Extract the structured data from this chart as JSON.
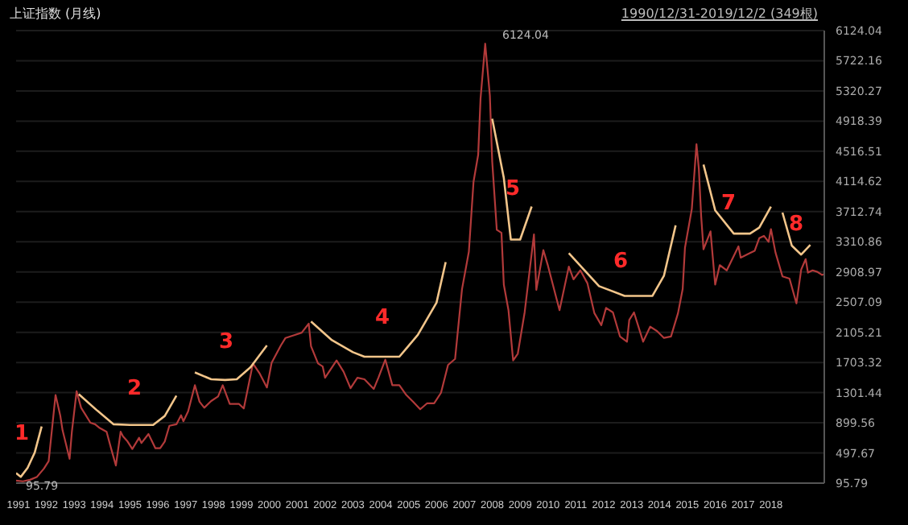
{
  "chart_data": {
    "type": "line",
    "title": "上证指数 (月线)",
    "subtitle": "1990/12/31-2019/12/2 (349根)",
    "xlim": [
      "1990-12",
      "2019-12"
    ],
    "xticks": [
      "1991",
      "1992",
      "1993",
      "1994",
      "1995",
      "1996",
      "1997",
      "1998",
      "1999",
      "2000",
      "2001",
      "2002",
      "2003",
      "2004",
      "2005",
      "2006",
      "2007",
      "2008",
      "2009",
      "2010",
      "2011",
      "2012",
      "2013",
      "2014",
      "2015",
      "2016",
      "2017",
      "2018"
    ],
    "ylim": [
      95.79,
      6124.04
    ],
    "yticks": [
      95.79,
      497.67,
      899.56,
      1301.44,
      1703.32,
      2105.21,
      2507.09,
      2908.97,
      3310.86,
      3712.74,
      4114.62,
      4516.51,
      4918.39,
      5320.27,
      5722.16,
      6124.04
    ],
    "grid": "y",
    "line_style": "solid",
    "marker": "none",
    "series": [
      {
        "color": "#b23a3a",
        "x": [
          "1990-12",
          "1991-03",
          "1991-06",
          "1991-09",
          "1991-12",
          "1992-02",
          "1992-05",
          "1992-07",
          "1992-08",
          "1992-11",
          "1992-12",
          "1993-02",
          "1993-04",
          "1993-06",
          "1993-08",
          "1993-10",
          "1993-12",
          "1994-03",
          "1994-05",
          "1994-07",
          "1994-09",
          "1994-10",
          "1994-12",
          "1995-02",
          "1995-05",
          "1995-06",
          "1995-09",
          "1995-12",
          "1996-02",
          "1996-04",
          "1996-06",
          "1996-09",
          "1996-11",
          "1996-12",
          "1997-02",
          "1997-05",
          "1997-07",
          "1997-09",
          "1997-12",
          "1998-03",
          "1998-05",
          "1998-08",
          "1998-12",
          "1999-02",
          "1999-06",
          "1999-09",
          "1999-12",
          "2000-02",
          "2000-06",
          "2000-08",
          "2000-12",
          "2001-03",
          "2001-06",
          "2001-07",
          "2001-10",
          "2001-12",
          "2002-01",
          "2002-06",
          "2002-09",
          "2002-12",
          "2003-03",
          "2003-06",
          "2003-10",
          "2003-12",
          "2004-03",
          "2004-06",
          "2004-09",
          "2004-12",
          "2005-03",
          "2005-06",
          "2005-09",
          "2005-12",
          "2006-03",
          "2006-06",
          "2006-09",
          "2006-12",
          "2007-03",
          "2007-05",
          "2007-07",
          "2007-08",
          "2007-10",
          "2007-12",
          "2008-01",
          "2008-03",
          "2008-05",
          "2008-06",
          "2008-08",
          "2008-10",
          "2008-12",
          "2009-03",
          "2009-07",
          "2009-08",
          "2009-11",
          "2010-01",
          "2010-06",
          "2010-10",
          "2010-12",
          "2011-03",
          "2011-06",
          "2011-09",
          "2011-12",
          "2012-02",
          "2012-05",
          "2012-08",
          "2012-11",
          "2012-12",
          "2013-02",
          "2013-06",
          "2013-09",
          "2013-12",
          "2014-03",
          "2014-06",
          "2014-09",
          "2014-11",
          "2014-12",
          "2015-03",
          "2015-05",
          "2015-06",
          "2015-07",
          "2015-08",
          "2015-11",
          "2016-01",
          "2016-03",
          "2016-06",
          "2016-11",
          "2016-12",
          "2017-04",
          "2017-06",
          "2017-08",
          "2017-10",
          "2017-12",
          "2018-01",
          "2018-03",
          "2018-06",
          "2018-09",
          "2018-12",
          "2019-02",
          "2019-04",
          "2019-05",
          "2019-07",
          "2019-09",
          "2019-11",
          "2019-12"
        ],
        "values": [
          130,
          120,
          140,
          180,
          290,
          390,
          1270,
          1000,
          800,
          420,
          780,
          1320,
          1100,
          1000,
          900,
          880,
          830,
          780,
          550,
          330,
          780,
          720,
          650,
          550,
          700,
          630,
          750,
          560,
          560,
          650,
          860,
          880,
          1000,
          920,
          1050,
          1400,
          1180,
          1100,
          1190,
          1250,
          1400,
          1150,
          1150,
          1090,
          1690,
          1550,
          1370,
          1700,
          1930,
          2030,
          2070,
          2100,
          2220,
          1920,
          1690,
          1650,
          1500,
          1730,
          1580,
          1360,
          1500,
          1480,
          1350,
          1500,
          1740,
          1400,
          1400,
          1270,
          1180,
          1080,
          1160,
          1160,
          1300,
          1670,
          1750,
          2680,
          3180,
          4110,
          4470,
          5220,
          5950,
          5260,
          4380,
          3470,
          3430,
          2740,
          2400,
          1730,
          1820,
          2370,
          3410,
          2670,
          3200,
          2990,
          2400,
          2980,
          2810,
          2930,
          2760,
          2360,
          2200,
          2430,
          2370,
          2050,
          1980,
          2270,
          2370,
          1980,
          2180,
          2120,
          2030,
          2050,
          2360,
          2680,
          3230,
          3750,
          4610,
          4280,
          3660,
          3210,
          3450,
          2740,
          3000,
          2930,
          3250,
          3100,
          3160,
          3190,
          3360,
          3390,
          3310,
          3480,
          3170,
          2850,
          2820,
          2490,
          2940,
          3080,
          2900,
          2930,
          2910,
          2870,
          2880
        ]
      },
      {
        "color": "#f2c58a",
        "x": [
          "1990-12",
          "1991-02",
          "1991-05",
          "1991-08",
          "1991-11"
        ],
        "values": [
          230,
          180,
          300,
          500,
          850
        ]
      },
      {
        "color": "#f2c58a",
        "x": [
          "1993-03",
          "1993-11",
          "1994-06",
          "1995-01",
          "1995-11",
          "1996-04",
          "1996-09"
        ],
        "values": [
          1280,
          1060,
          880,
          870,
          870,
          990,
          1260
        ]
      },
      {
        "color": "#f2c58a",
        "x": [
          "1997-05",
          "1997-12",
          "1998-06",
          "1998-11",
          "1999-05",
          "1999-12"
        ],
        "values": [
          1570,
          1480,
          1470,
          1480,
          1640,
          1930
        ]
      },
      {
        "color": "#f2c58a",
        "x": [
          "2001-07",
          "2002-04",
          "2003-01",
          "2003-06",
          "2004-09",
          "2005-05",
          "2006-01",
          "2006-05"
        ],
        "values": [
          2250,
          2000,
          1840,
          1780,
          1780,
          2070,
          2500,
          3040
        ]
      },
      {
        "color": "#f2c58a",
        "x": [
          "2008-01",
          "2008-06",
          "2008-09",
          "2009-01",
          "2009-06"
        ],
        "values": [
          4950,
          4160,
          3340,
          3340,
          3780
        ]
      },
      {
        "color": "#f2c58a",
        "x": [
          "2010-10",
          "2011-11",
          "2012-10",
          "2013-10",
          "2014-03",
          "2014-08"
        ],
        "values": [
          3160,
          2720,
          2590,
          2590,
          2860,
          3530
        ]
      },
      {
        "color": "#f2c58a",
        "x": [
          "2015-08",
          "2016-01",
          "2016-09",
          "2017-04",
          "2017-08",
          "2018-01"
        ],
        "values": [
          4340,
          3730,
          3420,
          3420,
          3500,
          3780
        ]
      },
      {
        "color": "#f2c58a",
        "x": [
          "2018-06",
          "2018-10",
          "2019-02",
          "2019-06"
        ],
        "values": [
          3700,
          3260,
          3140,
          3270
        ]
      }
    ],
    "annotations": [
      "6124.04",
      "95.79",
      "1",
      "2",
      "3",
      "4",
      "5",
      "6",
      "7",
      "8"
    ]
  }
}
